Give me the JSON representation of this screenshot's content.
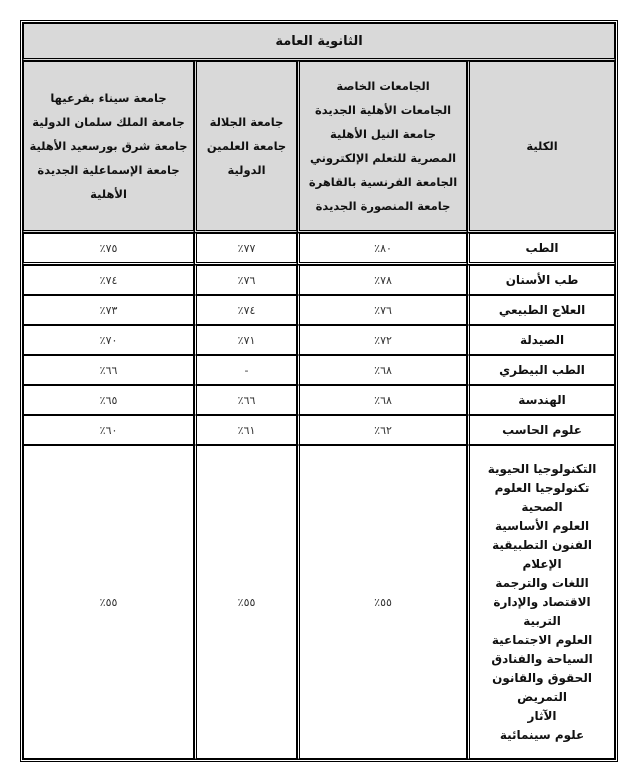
{
  "title": "الثانوية العامة",
  "headers": {
    "faculty": "الكلية",
    "col1": [
      "الجامعات الخاصة",
      "الجامعات الأهلية الجديدة",
      "جامعة النيل الأهلية",
      "المصرية للتعلم الإلكتروني",
      "الجامعة الفرنسية بالقاهرة",
      "جامعة المنصورة الجديدة"
    ],
    "col2": [
      "جامعة الجلالة",
      "جامعة العلمين",
      "الدولية"
    ],
    "col3": [
      "جامعة سيناء بفرعيها",
      "جامعة الملك سلمان الدولية",
      "جامعة شرق بورسعيد الأهلية",
      "جامعة الإسماعلية الجديدة",
      "الأهلية"
    ]
  },
  "rows": [
    {
      "faculty": "الطب",
      "c1": "٨٠٪",
      "c2": "٧٧٪",
      "c3": "٧٥٪"
    },
    {
      "faculty": "طب الأسنان",
      "c1": "٧٨٪",
      "c2": "٧٦٪",
      "c3": "٧٤٪"
    },
    {
      "faculty": "العلاج الطبيعي",
      "c1": "٧٦٪",
      "c2": "٧٤٪",
      "c3": "٧٣٪"
    },
    {
      "faculty": "الصيدلة",
      "c1": "٧٢٪",
      "c2": "٧١٪",
      "c3": "٧٠٪"
    },
    {
      "faculty": "الطب البيطري",
      "c1": "٦٨٪",
      "c2": "-",
      "c3": "٦٦٪"
    },
    {
      "faculty": "الهندسة",
      "c1": "٦٨٪",
      "c2": "٦٦٪",
      "c3": "٦٥٪"
    },
    {
      "faculty": "علوم الحاسب",
      "c1": "٦٢٪",
      "c2": "٦١٪",
      "c3": "٦٠٪"
    }
  ],
  "group_row": {
    "faculties": [
      "التكنولوجيا الحيوية",
      "تكنولوجيا العلوم الصحية",
      "العلوم الأساسية",
      "الفنون التطبيقية",
      "الإعلام",
      "اللغات والترجمة",
      "الاقتصاد والإدارة",
      "التربية",
      "العلوم الاجتماعية",
      "السياحة والفنادق",
      "الحقوق والقانون",
      "التمريض",
      "الآثار",
      "علوم سينمائية"
    ],
    "c1": "٥٥٪",
    "c2": "٥٥٪",
    "c3": "٥٥٪"
  }
}
